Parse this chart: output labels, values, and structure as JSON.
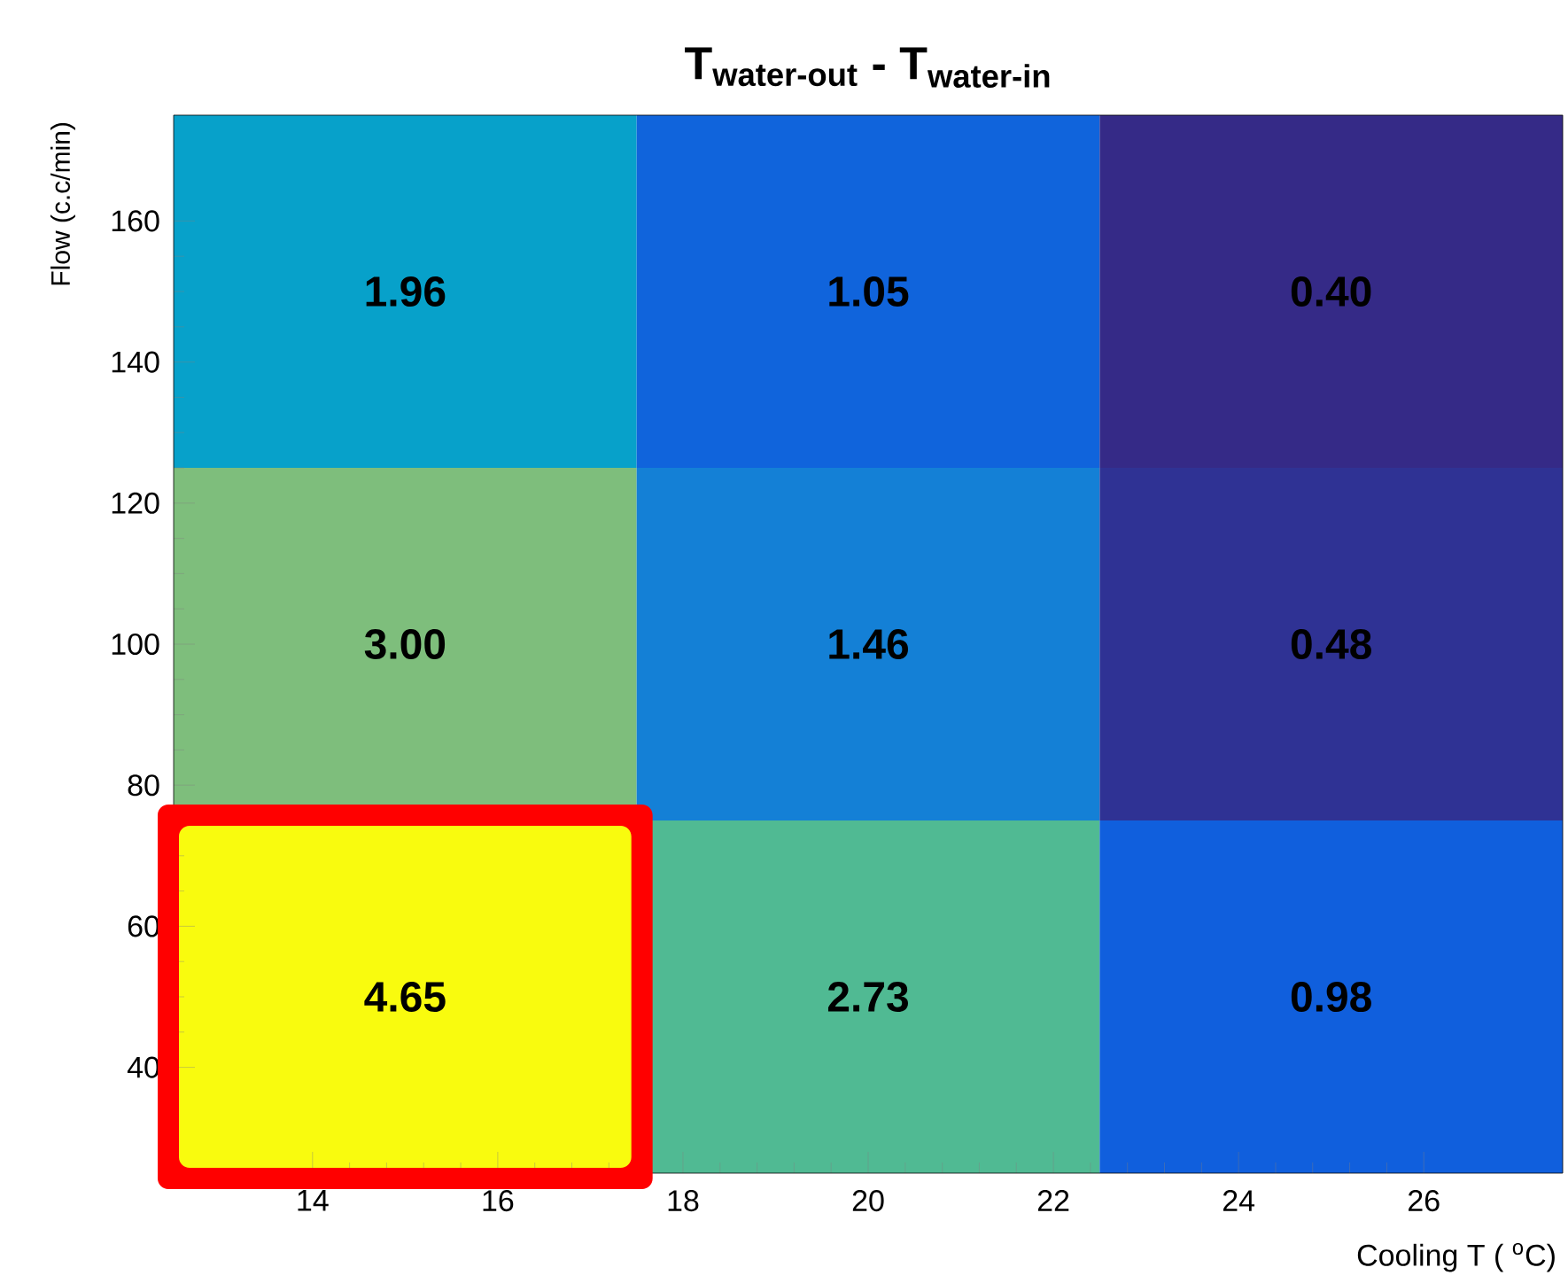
{
  "chart_data": {
    "type": "heatmap",
    "title": "T$_{water-out}$  -  T$_{water-in}$",
    "xlabel": "Cooling T ( $^{o}$C)",
    "ylabel": "Flow (c.c/min)",
    "xlim": [
      12.5,
      27.5
    ],
    "ylim": [
      25,
      175
    ],
    "xticks": [
      14,
      16,
      18,
      20,
      22,
      24,
      26
    ],
    "yticks": [
      40,
      60,
      80,
      100,
      120,
      140,
      160
    ],
    "cells": [
      [
        1.96,
        1.05,
        0.4
      ],
      [
        3.0,
        1.46,
        0.48
      ],
      [
        4.65,
        2.73,
        0.98
      ]
    ],
    "cell_labels": [
      [
        "1.96",
        "1.05",
        "0.40"
      ],
      [
        "3.00",
        "1.46",
        "0.48"
      ],
      [
        "4.65",
        "2.73",
        "0.98"
      ]
    ],
    "data_labels": true
  }
}
